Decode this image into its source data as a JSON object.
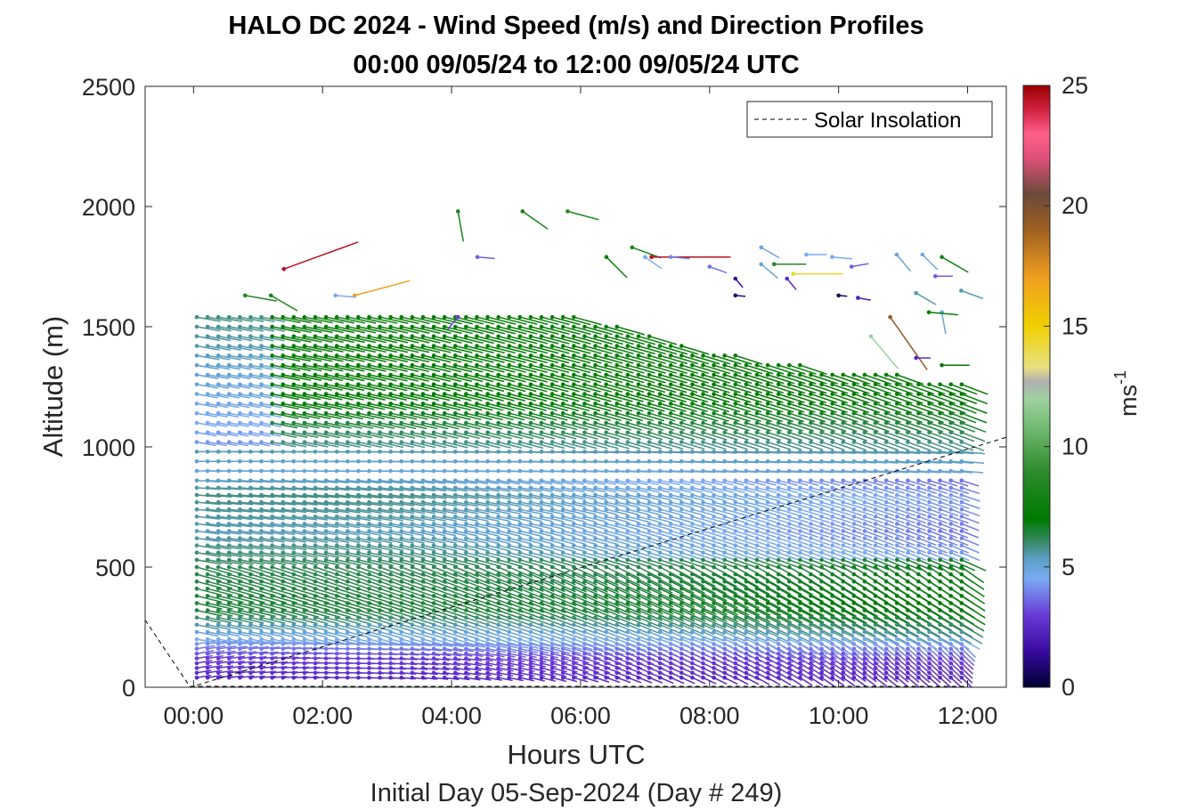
{
  "chart_data": {
    "type": "wind-barb-profile",
    "title": "HALO DC 2024 - Wind Speed (m/s) and Direction Profiles",
    "subtitle": "00:00 09/05/24 to 12:00 09/05/24  UTC",
    "xlabel": "Hours UTC",
    "ylabel": "Altitude (m)",
    "footer": "Initial Day 05-Sep-2024 (Day # 249)",
    "xlim": [
      -0.75,
      12.6
    ],
    "ylim": [
      0,
      2500
    ],
    "x_ticks": [
      0,
      2,
      4,
      6,
      8,
      10,
      12
    ],
    "x_tick_labels": [
      "00:00",
      "02:00",
      "04:00",
      "06:00",
      "08:00",
      "10:00",
      "12:00"
    ],
    "y_ticks": [
      0,
      500,
      1000,
      1500,
      2000,
      2500
    ],
    "y_tick_labels": [
      "0",
      "500",
      "1000",
      "1500",
      "2000",
      "2500"
    ],
    "legend": {
      "entries": [
        "Solar Insolation"
      ],
      "location": "top-right"
    },
    "colorbar": {
      "label": "ms",
      "label_exponent": "-1",
      "min": 0,
      "max": 25,
      "ticks": [
        0,
        5,
        10,
        15,
        20,
        25
      ],
      "tick_labels": [
        "0",
        "5",
        "10",
        "15",
        "20",
        "25"
      ],
      "stops": [
        {
          "v": 0,
          "c": "#000033"
        },
        {
          "v": 1.5,
          "c": "#3a0aa0"
        },
        {
          "v": 3,
          "c": "#6a3ad8"
        },
        {
          "v": 4.5,
          "c": "#7aaaf2"
        },
        {
          "v": 5.3,
          "c": "#5ea0c8"
        },
        {
          "v": 6,
          "c": "#3a8a6a"
        },
        {
          "v": 7,
          "c": "#007a00"
        },
        {
          "v": 9,
          "c": "#2e8b2e"
        },
        {
          "v": 11,
          "c": "#7ac07a"
        },
        {
          "v": 12,
          "c": "#a0d0a0"
        },
        {
          "v": 12.7,
          "c": "#b0b0b0"
        },
        {
          "v": 13.3,
          "c": "#e8e080"
        },
        {
          "v": 15,
          "c": "#f0d000"
        },
        {
          "v": 17,
          "c": "#f0a020"
        },
        {
          "v": 19,
          "c": "#a06020"
        },
        {
          "v": 20.5,
          "c": "#6a4a3a"
        },
        {
          "v": 22,
          "c": "#e0507a"
        },
        {
          "v": 23,
          "c": "#ff6088"
        },
        {
          "v": 24,
          "c": "#d02040"
        },
        {
          "v": 25,
          "c": "#990000"
        }
      ]
    },
    "solar_insolation": {
      "x": [
        -0.75,
        -0.05,
        12.6
      ],
      "y": [
        280,
        0,
        1040
      ],
      "baseline_y": 0
    },
    "profiles": {
      "time_start": 0.05,
      "time_end": 12.0,
      "time_step": 0.167,
      "altitudes": [
        40,
        60,
        80,
        100,
        120,
        140,
        160,
        180,
        200,
        230,
        260,
        290,
        320,
        350,
        380,
        410,
        440,
        470,
        500,
        530,
        560,
        590,
        620,
        650,
        680,
        710,
        740,
        770,
        800,
        830,
        860,
        900,
        940,
        980,
        1020,
        1060,
        1100,
        1140,
        1180,
        1220,
        1260,
        1300,
        1340,
        1380,
        1420,
        1460,
        1500,
        1540,
        1580
      ],
      "profile_top": [
        [
          0.0,
          1580
        ],
        [
          1.0,
          1550
        ],
        [
          2.0,
          1560
        ],
        [
          3.0,
          1580
        ],
        [
          4.0,
          1570
        ],
        [
          5.0,
          1560
        ],
        [
          6.0,
          1540
        ],
        [
          7.0,
          1470
        ],
        [
          8.0,
          1400
        ],
        [
          9.0,
          1360
        ],
        [
          10.0,
          1320
        ],
        [
          11.0,
          1300
        ],
        [
          12.0,
          1280
        ]
      ],
      "speed_field": [
        {
          "alt": 40,
          "speed": 2.5
        },
        {
          "alt": 120,
          "speed": 3.0
        },
        {
          "alt": 200,
          "speed": 4.6
        },
        {
          "alt": 330,
          "speed": 6.5
        },
        {
          "alt": 500,
          "speed": 6.2
        },
        {
          "alt": 650,
          "speed": 5.4
        },
        {
          "alt": 800,
          "speed": 5.8
        },
        {
          "alt": 900,
          "speed": 5.0
        },
        {
          "alt": 1000,
          "speed": 5.6
        },
        {
          "alt": 1150,
          "speed": 6.8
        },
        {
          "alt": 1300,
          "speed": 7.2
        },
        {
          "alt": 1500,
          "speed": 7.4
        }
      ],
      "sparse_barbs": [
        {
          "t": 1.4,
          "alt": 1740,
          "speed": 24.5,
          "dir": 70
        },
        {
          "t": 0.8,
          "alt": 1630,
          "speed": 8.5,
          "dir": 100
        },
        {
          "t": 1.2,
          "alt": 1630,
          "speed": 8.0,
          "dir": 120
        },
        {
          "t": 2.5,
          "alt": 1630,
          "speed": 17.0,
          "dir": 75
        },
        {
          "t": 2.2,
          "alt": 1630,
          "speed": 4.5,
          "dir": 95
        },
        {
          "t": 4.1,
          "alt": 1980,
          "speed": 8.0,
          "dir": 170
        },
        {
          "t": 5.1,
          "alt": 1980,
          "speed": 8.0,
          "dir": 125
        },
        {
          "t": 5.8,
          "alt": 1980,
          "speed": 8.5,
          "dir": 105
        },
        {
          "t": 4.4,
          "alt": 1790,
          "speed": 3.5,
          "dir": 95
        },
        {
          "t": 4.1,
          "alt": 1540,
          "speed": 3.0,
          "dir": 220
        },
        {
          "t": 6.4,
          "alt": 1790,
          "speed": 7.5,
          "dir": 135
        },
        {
          "t": 6.8,
          "alt": 1830,
          "speed": 8.0,
          "dir": 110
        },
        {
          "t": 7.1,
          "alt": 1790,
          "speed": 24.5,
          "dir": 90
        },
        {
          "t": 7.4,
          "alt": 1790,
          "speed": 4.0,
          "dir": 95
        },
        {
          "t": 7.0,
          "alt": 1790,
          "speed": 4.5,
          "dir": 125
        },
        {
          "t": 8.0,
          "alt": 1750,
          "speed": 3.8,
          "dir": 110
        },
        {
          "t": 8.4,
          "alt": 1700,
          "speed": 1.5,
          "dir": 140
        },
        {
          "t": 8.8,
          "alt": 1830,
          "speed": 4.8,
          "dir": 120
        },
        {
          "t": 8.8,
          "alt": 1760,
          "speed": 5.0,
          "dir": 130
        },
        {
          "t": 9.0,
          "alt": 1760,
          "speed": 8.5,
          "dir": 90
        },
        {
          "t": 9.3,
          "alt": 1720,
          "speed": 14.5,
          "dir": 90
        },
        {
          "t": 9.2,
          "alt": 1700,
          "speed": 2.5,
          "dir": 140
        },
        {
          "t": 8.4,
          "alt": 1630,
          "speed": 1.0,
          "dir": 95
        },
        {
          "t": 9.5,
          "alt": 1800,
          "speed": 4.5,
          "dir": 90
        },
        {
          "t": 9.9,
          "alt": 1790,
          "speed": 4.5,
          "dir": 95
        },
        {
          "t": 10.2,
          "alt": 1750,
          "speed": 3.5,
          "dir": 80
        },
        {
          "t": 10.0,
          "alt": 1630,
          "speed": 0.5,
          "dir": 95
        },
        {
          "t": 10.3,
          "alt": 1620,
          "speed": 2.0,
          "dir": 100
        },
        {
          "t": 10.8,
          "alt": 1540,
          "speed": 19.5,
          "dir": 145
        },
        {
          "t": 10.5,
          "alt": 1460,
          "speed": 12.0,
          "dir": 140
        },
        {
          "t": 10.9,
          "alt": 1800,
          "speed": 5.0,
          "dir": 140
        },
        {
          "t": 11.3,
          "alt": 1800,
          "speed": 4.8,
          "dir": 135
        },
        {
          "t": 11.6,
          "alt": 1790,
          "speed": 8.0,
          "dir": 120
        },
        {
          "t": 11.5,
          "alt": 1710,
          "speed": 3.5,
          "dir": 90
        },
        {
          "t": 11.2,
          "alt": 1640,
          "speed": 5.5,
          "dir": 120
        },
        {
          "t": 11.9,
          "alt": 1650,
          "speed": 5.5,
          "dir": 110
        },
        {
          "t": 11.6,
          "alt": 1560,
          "speed": 5.0,
          "dir": 170
        },
        {
          "t": 11.4,
          "alt": 1560,
          "speed": 7.5,
          "dir": 95
        },
        {
          "t": 11.2,
          "alt": 1370,
          "speed": 2.5,
          "dir": 90
        },
        {
          "t": 11.6,
          "alt": 1340,
          "speed": 7.0,
          "dir": 90
        }
      ]
    }
  }
}
